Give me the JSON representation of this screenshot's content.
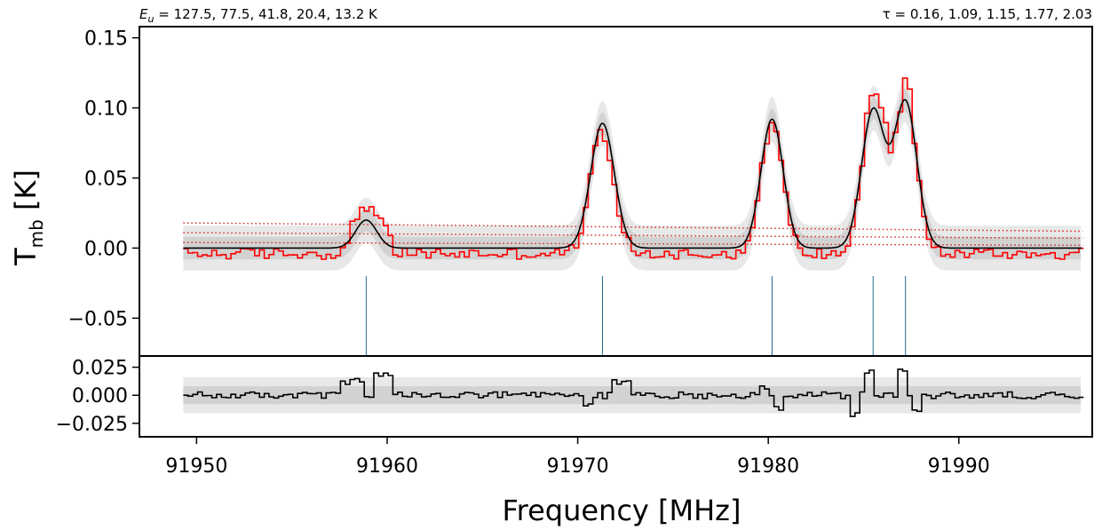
{
  "annotations": {
    "eu_text": "E_u = 127.5, 77.5, 41.8, 20.4, 13.2 K",
    "tau_text": "τ = 0.16, 1.09, 1.15, 1.77, 2.03"
  },
  "colors": {
    "observed": "#ff0000",
    "model": "#000000",
    "residual": "#000000",
    "band_outer": "#e8e8e8",
    "band_inner": "#d2d2d2",
    "lines": "#1f6f8b",
    "baseline": "#d62728"
  },
  "chart_data": [
    {
      "type": "line",
      "panel": "main",
      "ylabel": "T_mb [K]",
      "ylim": [
        -0.077,
        0.158
      ],
      "xlim": [
        91947.0,
        91997.0
      ],
      "yticks": [
        -0.05,
        0.0,
        0.05,
        0.1,
        0.15
      ],
      "ytick_labels": [
        "−0.05",
        "0.00",
        "0.05",
        "0.10",
        "0.15"
      ],
      "grid": false,
      "model_params": {
        "components": [
          {
            "center": 91958.9,
            "amplitude": 0.02,
            "sigma": 0.55
          },
          {
            "center": 91971.3,
            "amplitude": 0.089,
            "sigma": 0.62
          },
          {
            "center": 91980.2,
            "amplitude": 0.092,
            "sigma": 0.58
          },
          {
            "center": 91985.5,
            "amplitude": 0.098,
            "sigma": 0.6
          },
          {
            "center": 91987.2,
            "amplitude": 0.104,
            "sigma": 0.6
          }
        ]
      },
      "bands": {
        "outer_halfwidth": 0.016,
        "inner_halfwidth": 0.008,
        "x_range": [
          91949.3,
          91996.5
        ]
      },
      "line_positions": {
        "x": [
          91958.9,
          91971.3,
          91980.2,
          91985.5,
          91987.2
        ],
        "y_top": -0.02
      },
      "baselines": [
        {
          "x": [
            91949.3,
            91996.5
          ],
          "y": [
            0.018,
            0.012
          ]
        },
        {
          "x": [
            91949.3,
            91996.5
          ],
          "y": [
            0.011,
            0.007
          ]
        },
        {
          "x": [
            91949.3,
            91996.5
          ],
          "y": [
            0.004,
            0.002
          ]
        }
      ],
      "observed_excess": [
        {
          "x": [
            91958.0,
            91960.2
          ],
          "dy": 0.014
        },
        {
          "x": [
            91985.0,
            91986.2
          ],
          "dy": 0.018
        },
        {
          "x": [
            91987.0,
            91987.5
          ],
          "dy": 0.02
        },
        {
          "x": [
            91971.4,
            91972.3
          ],
          "dy": -0.004
        }
      ],
      "series": [
        {
          "name": "observed",
          "style": "step"
        },
        {
          "name": "model",
          "style": "line"
        }
      ]
    },
    {
      "type": "line",
      "panel": "residual",
      "xlabel": "Frequency [MHz]",
      "ylim": [
        -0.037,
        0.035
      ],
      "xlim": [
        91947.0,
        91997.0
      ],
      "yticks": [
        -0.025,
        0.0,
        0.025
      ],
      "ytick_labels": [
        "−0.025",
        "0.000",
        "0.025"
      ],
      "xticks": [
        91950,
        91960,
        91970,
        91980,
        91990
      ],
      "xtick_labels": [
        "91950",
        "91960",
        "91970",
        "91980",
        "91990"
      ],
      "grid": false,
      "bands": {
        "outer_halfwidth": 0.016,
        "inner_halfwidth": 0.008
      },
      "residual_features": [
        {
          "x": [
            91957.5,
            91958.8
          ],
          "dy": 0.012
        },
        {
          "x": [
            91959.2,
            91960.3
          ],
          "dy": 0.017
        },
        {
          "x": [
            91970.3,
            91970.9
          ],
          "dy": -0.01
        },
        {
          "x": [
            91971.8,
            91972.8
          ],
          "dy": 0.012
        },
        {
          "x": [
            91979.5,
            91980.0
          ],
          "dy": 0.008
        },
        {
          "x": [
            91980.3,
            91980.9
          ],
          "dy": -0.012
        },
        {
          "x": [
            91984.4,
            91984.9
          ],
          "dy": -0.018
        },
        {
          "x": [
            91985.1,
            91985.6
          ],
          "dy": 0.02
        },
        {
          "x": [
            91986.8,
            91987.3
          ],
          "dy": 0.024
        },
        {
          "x": [
            91987.5,
            91988.1
          ],
          "dy": -0.016
        }
      ]
    }
  ]
}
